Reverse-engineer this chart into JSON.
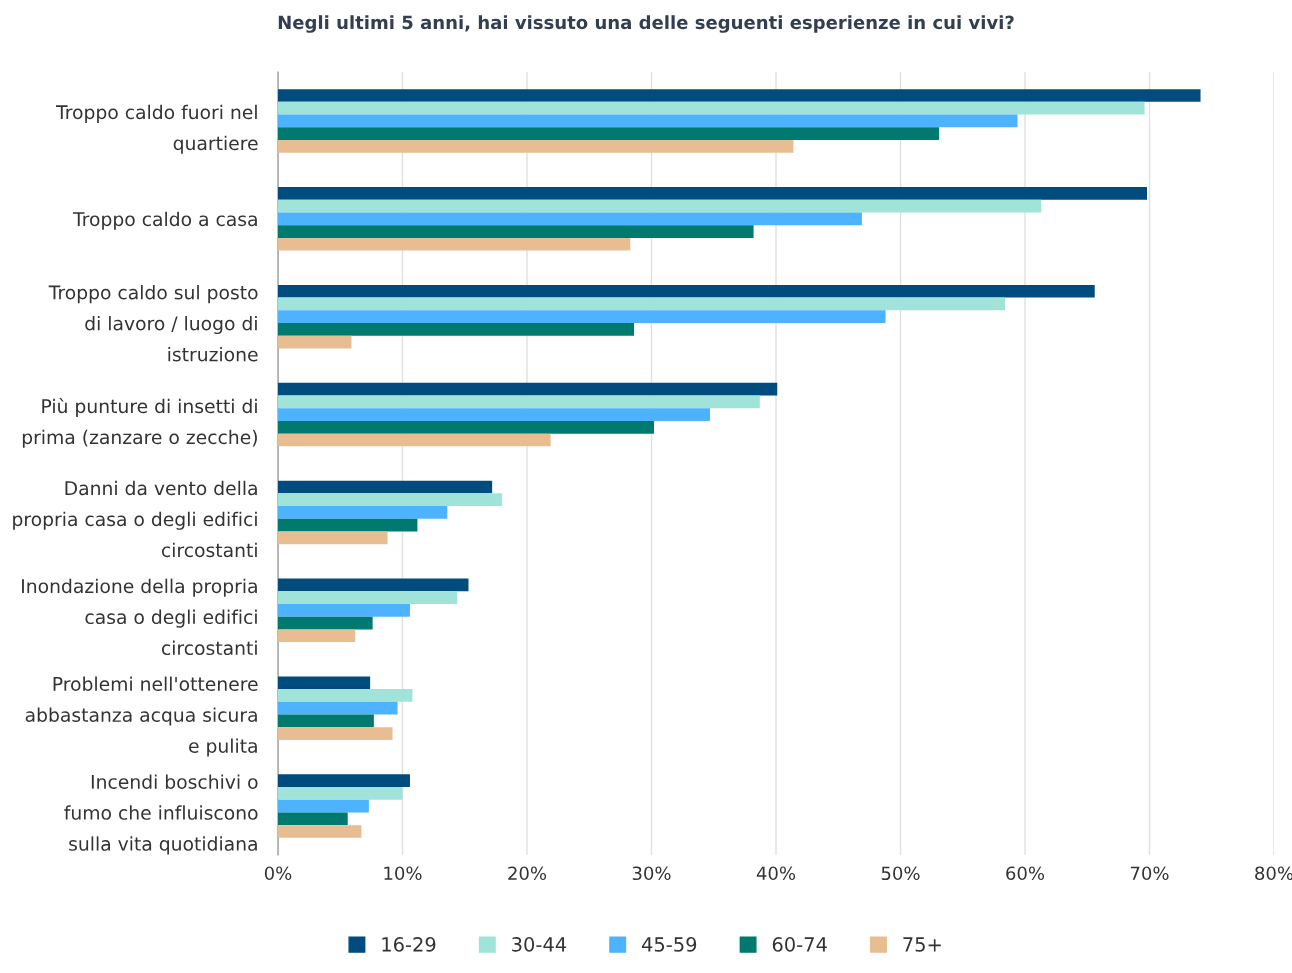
{
  "chart_data": {
    "type": "bar",
    "orientation": "horizontal",
    "title": "Negli ultimi 5 anni, hai vissuto una delle seguenti esperienze in cui vivi?",
    "categories": [
      "Troppo caldo fuori nel\nquartiere",
      "Troppo caldo a casa",
      "Troppo caldo sul posto\ndi lavoro / luogo di\nistruzione",
      "Più punture di insetti di\nprima (zanzare o zecche)",
      "Danni da vento della\npropria casa o degli edifici\ncircostanti",
      "Inondazione della propria\ncasa o degli edifici\ncircostanti",
      "Problemi nell'ottenere\nabbastanza acqua sicura\ne pulita",
      "Incendi boschivi o\nfumo che influiscono\nsulla vita quotidiana"
    ],
    "series": [
      {
        "name": "16-29",
        "color": "#004c7f",
        "values": [
          74.1,
          69.8,
          65.6,
          40.1,
          17.2,
          15.3,
          7.4,
          10.6
        ]
      },
      {
        "name": "30-44",
        "color": "#a0e3d8",
        "values": [
          69.6,
          61.3,
          58.4,
          38.7,
          18.0,
          14.4,
          10.8,
          10.0
        ]
      },
      {
        "name": "45-59",
        "color": "#4db3ff",
        "values": [
          59.4,
          46.9,
          48.8,
          34.7,
          13.6,
          10.6,
          9.6,
          7.3
        ]
      },
      {
        "name": "60-74",
        "color": "#007a6e",
        "values": [
          53.1,
          38.2,
          28.6,
          30.2,
          11.2,
          7.6,
          7.7,
          5.6
        ]
      },
      {
        "name": "75+",
        "color": "#e8bd91",
        "values": [
          41.4,
          28.3,
          5.9,
          21.9,
          8.8,
          6.2,
          9.2,
          6.7
        ]
      }
    ],
    "xlim": [
      0,
      80
    ],
    "xticks": [
      {
        "value": 0,
        "label": "0%"
      },
      {
        "value": 10,
        "label": "10%"
      },
      {
        "value": 20,
        "label": "20%"
      },
      {
        "value": 30,
        "label": "30%"
      },
      {
        "value": 40,
        "label": "40%"
      },
      {
        "value": 50,
        "label": "50%"
      },
      {
        "value": 60,
        "label": "60%"
      },
      {
        "value": 70,
        "label": "70%"
      },
      {
        "value": 80,
        "label": "80%"
      }
    ],
    "grid": "x",
    "legend": "bottom"
  }
}
